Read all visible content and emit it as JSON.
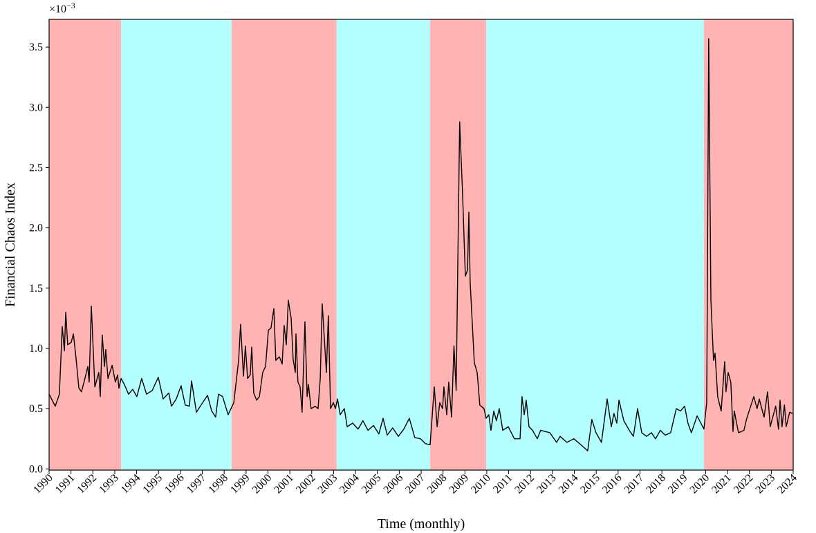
{
  "chart_data": {
    "type": "line",
    "xlabel": "Time (monthly)",
    "ylabel": "Financial Chaos Index",
    "y_multiplier_base": "×10",
    "y_multiplier_exponent": "−3",
    "color": "#000000",
    "xlim": [
      1990,
      2024
    ],
    "ylim": [
      -0.01,
      3.73
    ],
    "xticks": [
      1990,
      1991,
      1992,
      1993,
      1994,
      1995,
      1996,
      1997,
      1998,
      1999,
      2000,
      2001,
      2002,
      2003,
      2004,
      2005,
      2006,
      2007,
      2008,
      2009,
      2010,
      2011,
      2012,
      2013,
      2014,
      2015,
      2016,
      2017,
      2018,
      2019,
      2020,
      2021,
      2022,
      2023,
      2024
    ],
    "yticks": [
      {
        "value": 0,
        "label": "0.0"
      },
      0.5,
      {
        "value": 1,
        "label": "1.0"
      },
      1.5,
      {
        "value": 2,
        "label": "2.0"
      },
      2.5,
      {
        "value": 3,
        "label": "3.0"
      },
      3.5
    ],
    "regions": [
      {
        "start": 1990,
        "end": 1993.29,
        "color": "#ffb3b3"
      },
      {
        "start": 1993.29,
        "end": 1998.34,
        "color": "#b3ffff"
      },
      {
        "start": 1998.34,
        "end": 2003.14,
        "color": "#ffb3b3"
      },
      {
        "start": 2003.14,
        "end": 2007.41,
        "color": "#b3ffff"
      },
      {
        "start": 2007.41,
        "end": 2009.97,
        "color": "#ffb3b3"
      },
      {
        "start": 2009.97,
        "end": 2019.92,
        "color": "#b3ffff"
      },
      {
        "start": 2019.92,
        "end": 2024,
        "color": "#ffb3b3"
      }
    ],
    "x": [
      1990.0,
      1990.28,
      1990.47,
      1990.6,
      1990.7,
      1990.76,
      1990.85,
      1991.01,
      1991.11,
      1991.23,
      1991.36,
      1991.48,
      1991.61,
      1991.77,
      1991.83,
      1991.93,
      1992.09,
      1992.27,
      1992.34,
      1992.43,
      1992.53,
      1992.59,
      1992.69,
      1992.88,
      1993.03,
      1993.13,
      1993.19,
      1993.29,
      1993.44,
      1993.63,
      1993.82,
      1994.01,
      1994.23,
      1994.45,
      1994.71,
      1994.99,
      1995.21,
      1995.47,
      1995.59,
      1995.81,
      1996.03,
      1996.22,
      1996.41,
      1996.51,
      1996.73,
      1996.98,
      1997.24,
      1997.43,
      1997.61,
      1997.74,
      1997.93,
      1998.18,
      1998.44,
      1998.66,
      1998.75,
      1998.88,
      1998.97,
      1999.07,
      1999.19,
      1999.26,
      1999.35,
      1999.48,
      1999.61,
      1999.76,
      1999.89,
      2000.02,
      2000.14,
      2000.27,
      2000.36,
      2000.52,
      2000.65,
      2000.74,
      2000.84,
      2000.93,
      2001.06,
      2001.15,
      2001.25,
      2001.28,
      2001.37,
      2001.47,
      2001.56,
      2001.69,
      2001.79,
      2001.85,
      2001.97,
      2002.16,
      2002.29,
      2002.39,
      2002.48,
      2002.67,
      2002.76,
      2002.86,
      2002.99,
      2003.08,
      2003.18,
      2003.3,
      2003.49,
      2003.62,
      2003.87,
      2004.12,
      2004.34,
      2004.57,
      2004.82,
      2005.07,
      2005.26,
      2005.45,
      2005.7,
      2005.96,
      2006.21,
      2006.46,
      2006.71,
      2006.97,
      2007.19,
      2007.41,
      2007.6,
      2007.73,
      2007.85,
      2007.98,
      2008.04,
      2008.17,
      2008.26,
      2008.39,
      2008.5,
      2008.6,
      2008.76,
      2008.89,
      2009.02,
      2009.12,
      2009.18,
      2009.24,
      2009.43,
      2009.56,
      2009.68,
      2009.87,
      2009.97,
      2010.09,
      2010.19,
      2010.32,
      2010.44,
      2010.57,
      2010.73,
      2010.98,
      2011.26,
      2011.52,
      2011.61,
      2011.71,
      2011.8,
      2011.93,
      2012.09,
      2012.31,
      2012.46,
      2012.88,
      2013.19,
      2013.35,
      2013.66,
      2013.98,
      2014.3,
      2014.61,
      2014.8,
      2014.99,
      2015.24,
      2015.5,
      2015.69,
      2015.81,
      2015.94,
      2016.04,
      2016.26,
      2016.51,
      2016.7,
      2016.89,
      2017.08,
      2017.3,
      2017.52,
      2017.71,
      2017.93,
      2018.15,
      2018.4,
      2018.66,
      2018.85,
      2019.04,
      2019.19,
      2019.35,
      2019.61,
      2019.92,
      2020.05,
      2020.14,
      2020.24,
      2020.36,
      2020.43,
      2020.55,
      2020.71,
      2020.87,
      2020.93,
      2021.03,
      2021.15,
      2021.25,
      2021.31,
      2021.5,
      2021.75,
      2021.88,
      2022.2,
      2022.35,
      2022.45,
      2022.67,
      2022.83,
      2022.95,
      2023.2,
      2023.33,
      2023.4,
      2023.49,
      2023.6,
      2023.68,
      2023.84,
      2023.97
    ],
    "values": [
      0.62,
      0.52,
      0.62,
      1.18,
      0.98,
      1.3,
      1.03,
      1.05,
      1.12,
      0.92,
      0.67,
      0.64,
      0.73,
      0.85,
      0.72,
      1.35,
      0.68,
      0.8,
      0.6,
      1.11,
      0.85,
      0.99,
      0.75,
      0.86,
      0.72,
      0.78,
      0.67,
      0.75,
      0.7,
      0.62,
      0.66,
      0.6,
      0.75,
      0.62,
      0.65,
      0.76,
      0.58,
      0.63,
      0.52,
      0.58,
      0.69,
      0.53,
      0.52,
      0.73,
      0.47,
      0.54,
      0.61,
      0.48,
      0.43,
      0.62,
      0.6,
      0.45,
      0.55,
      0.9,
      1.2,
      0.77,
      1.02,
      0.75,
      0.78,
      1.01,
      0.63,
      0.57,
      0.6,
      0.8,
      0.85,
      1.15,
      1.17,
      1.33,
      0.9,
      0.93,
      0.87,
      1.19,
      1.03,
      1.4,
      1.25,
      0.91,
      0.8,
      1.12,
      0.72,
      0.68,
      0.47,
      1.22,
      0.6,
      0.7,
      0.5,
      0.52,
      0.5,
      0.75,
      1.37,
      0.8,
      1.27,
      0.5,
      0.55,
      0.5,
      0.58,
      0.45,
      0.5,
      0.35,
      0.38,
      0.33,
      0.4,
      0.32,
      0.36,
      0.29,
      0.42,
      0.28,
      0.34,
      0.27,
      0.33,
      0.42,
      0.26,
      0.25,
      0.21,
      0.2,
      0.68,
      0.35,
      0.55,
      0.5,
      0.68,
      0.45,
      0.72,
      0.43,
      1.02,
      0.65,
      2.88,
      2.3,
      1.6,
      1.65,
      2.13,
      1.55,
      0.88,
      0.8,
      0.53,
      0.5,
      0.42,
      0.45,
      0.32,
      0.48,
      0.4,
      0.5,
      0.32,
      0.35,
      0.25,
      0.25,
      0.6,
      0.45,
      0.57,
      0.35,
      0.32,
      0.25,
      0.32,
      0.3,
      0.22,
      0.27,
      0.22,
      0.25,
      0.2,
      0.15,
      0.41,
      0.3,
      0.22,
      0.58,
      0.35,
      0.46,
      0.38,
      0.57,
      0.4,
      0.32,
      0.27,
      0.5,
      0.3,
      0.27,
      0.3,
      0.25,
      0.32,
      0.28,
      0.3,
      0.5,
      0.48,
      0.52,
      0.38,
      0.3,
      0.44,
      0.33,
      0.55,
      3.57,
      1.4,
      0.9,
      0.96,
      0.6,
      0.48,
      0.89,
      0.64,
      0.8,
      0.72,
      0.31,
      0.48,
      0.3,
      0.32,
      0.42,
      0.6,
      0.5,
      0.58,
      0.43,
      0.64,
      0.35,
      0.52,
      0.33,
      0.57,
      0.35,
      0.53,
      0.35,
      0.47,
      0.46
    ]
  }
}
